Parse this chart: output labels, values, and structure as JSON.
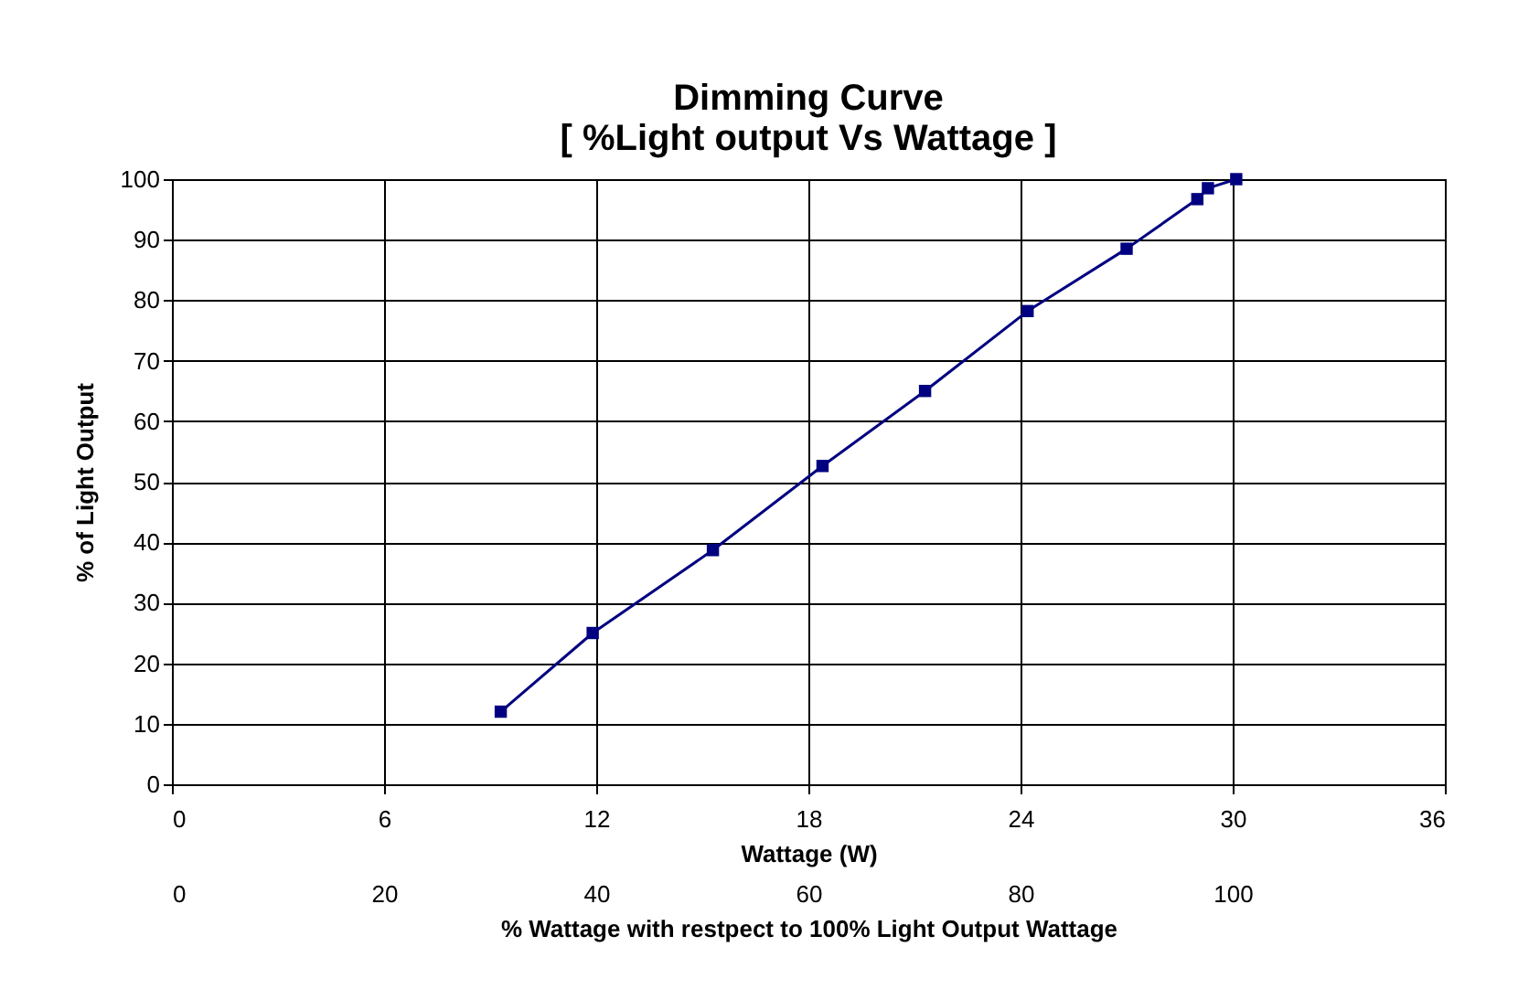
{
  "chart_data": {
    "type": "line",
    "title": [
      "Dimming Curve",
      "[ %Light output Vs Wattage ]"
    ],
    "xlabel": "Wattage (W)",
    "ylabel": "% of Light Output",
    "x2label": "% Wattage with restpect to 100% Light Output Wattage",
    "x": [
      9.3,
      11.9,
      15.3,
      18.4,
      21.3,
      24.2,
      27.0,
      29.0,
      29.3,
      30.1
    ],
    "series": [
      {
        "color": "#000080",
        "values": [
          12,
          25,
          38.7,
          52.6,
          65,
          78.2,
          88.5,
          96.7,
          98.5,
          100
        ]
      }
    ],
    "xlim": [
      0,
      36
    ],
    "xticks": [
      0,
      6,
      12,
      18,
      24,
      30,
      36
    ],
    "ylim": [
      0,
      100
    ],
    "yticks": [
      0,
      10,
      20,
      30,
      40,
      50,
      60,
      70,
      80,
      90,
      100
    ],
    "x2lim": [
      0,
      120
    ],
    "x2ticks": [
      0,
      20,
      40,
      60,
      80,
      100
    ],
    "grid": true,
    "marker": "square",
    "line_style": "solid"
  }
}
